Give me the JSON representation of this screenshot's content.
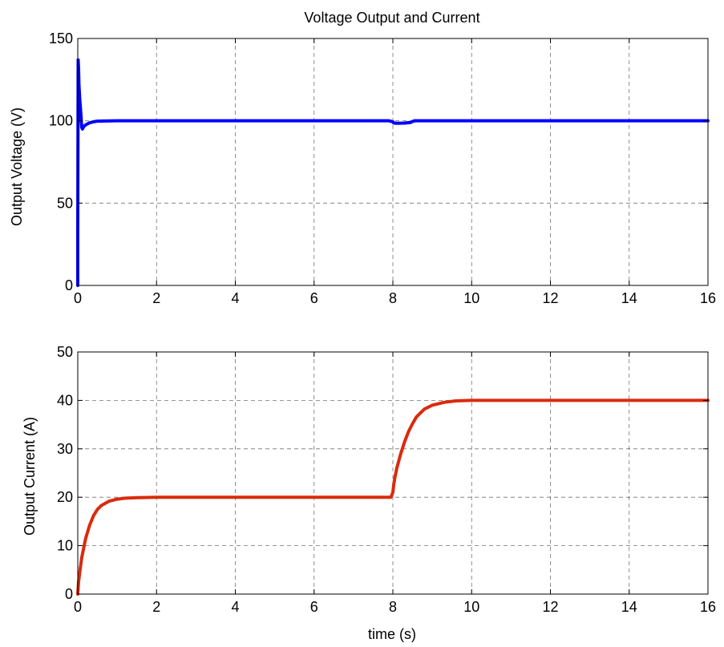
{
  "chart_data": [
    {
      "type": "line",
      "title": "Voltage  Output and Current",
      "xlabel": "",
      "ylabel": "Output Voltage (V)",
      "xlim": [
        0,
        16
      ],
      "ylim": [
        0,
        150
      ],
      "xticks": [
        "0",
        "2",
        "4",
        "6",
        "8",
        "10",
        "12",
        "14",
        "16"
      ],
      "yticks": [
        "0",
        "50",
        "100",
        "150"
      ],
      "grid": true,
      "color": "#0000ff",
      "series": [
        {
          "x": [
            0,
            0.0,
            0.01,
            0.02,
            0.03,
            0.05,
            0.07,
            0.09,
            0.1,
            0.12,
            0.15,
            0.2,
            0.25,
            0.3,
            0.4,
            0.5,
            1,
            2,
            4,
            6,
            7.9,
            8.0,
            8.02,
            8.1,
            8.3,
            8.45,
            8.5,
            8.55,
            9,
            10,
            12,
            14,
            16
          ],
          "y": [
            0,
            30,
            137,
            132,
            122,
            113,
            107,
            100,
            96,
            95,
            96.5,
            97.5,
            98.2,
            98.8,
            99.4,
            99.8,
            100,
            100,
            100,
            100,
            100,
            99.4,
            98.7,
            98.5,
            98.6,
            99.0,
            99.6,
            100,
            100,
            100,
            100,
            100,
            100
          ]
        }
      ]
    },
    {
      "type": "line",
      "title": "",
      "xlabel": "time (s)",
      "ylabel": "Output Current (A)",
      "xlim": [
        0,
        16
      ],
      "ylim": [
        0,
        50
      ],
      "xticks": [
        "0",
        "2",
        "4",
        "6",
        "8",
        "10",
        "12",
        "14",
        "16"
      ],
      "yticks": [
        "0",
        "10",
        "20",
        "30",
        "40",
        "50"
      ],
      "grid": true,
      "color": "#d92b0c",
      "series": [
        {
          "x": [
            0,
            0.02,
            0.05,
            0.1,
            0.2,
            0.3,
            0.4,
            0.5,
            0.6,
            0.8,
            1.0,
            1.2,
            1.5,
            2,
            4,
            6,
            7.95,
            8.0,
            8.02,
            8.05,
            8.1,
            8.2,
            8.3,
            8.4,
            8.5,
            8.6,
            8.8,
            9.0,
            9.3,
            9.6,
            10,
            12,
            14,
            16
          ],
          "y": [
            0,
            2.5,
            4.5,
            7.5,
            11.5,
            14.2,
            16.2,
            17.5,
            18.3,
            19.2,
            19.6,
            19.8,
            19.9,
            20,
            20,
            20,
            20,
            21,
            22.5,
            24,
            26,
            29,
            31.5,
            33.6,
            35.2,
            36.6,
            38.2,
            39,
            39.6,
            39.9,
            40,
            40,
            40,
            40
          ]
        }
      ]
    }
  ]
}
